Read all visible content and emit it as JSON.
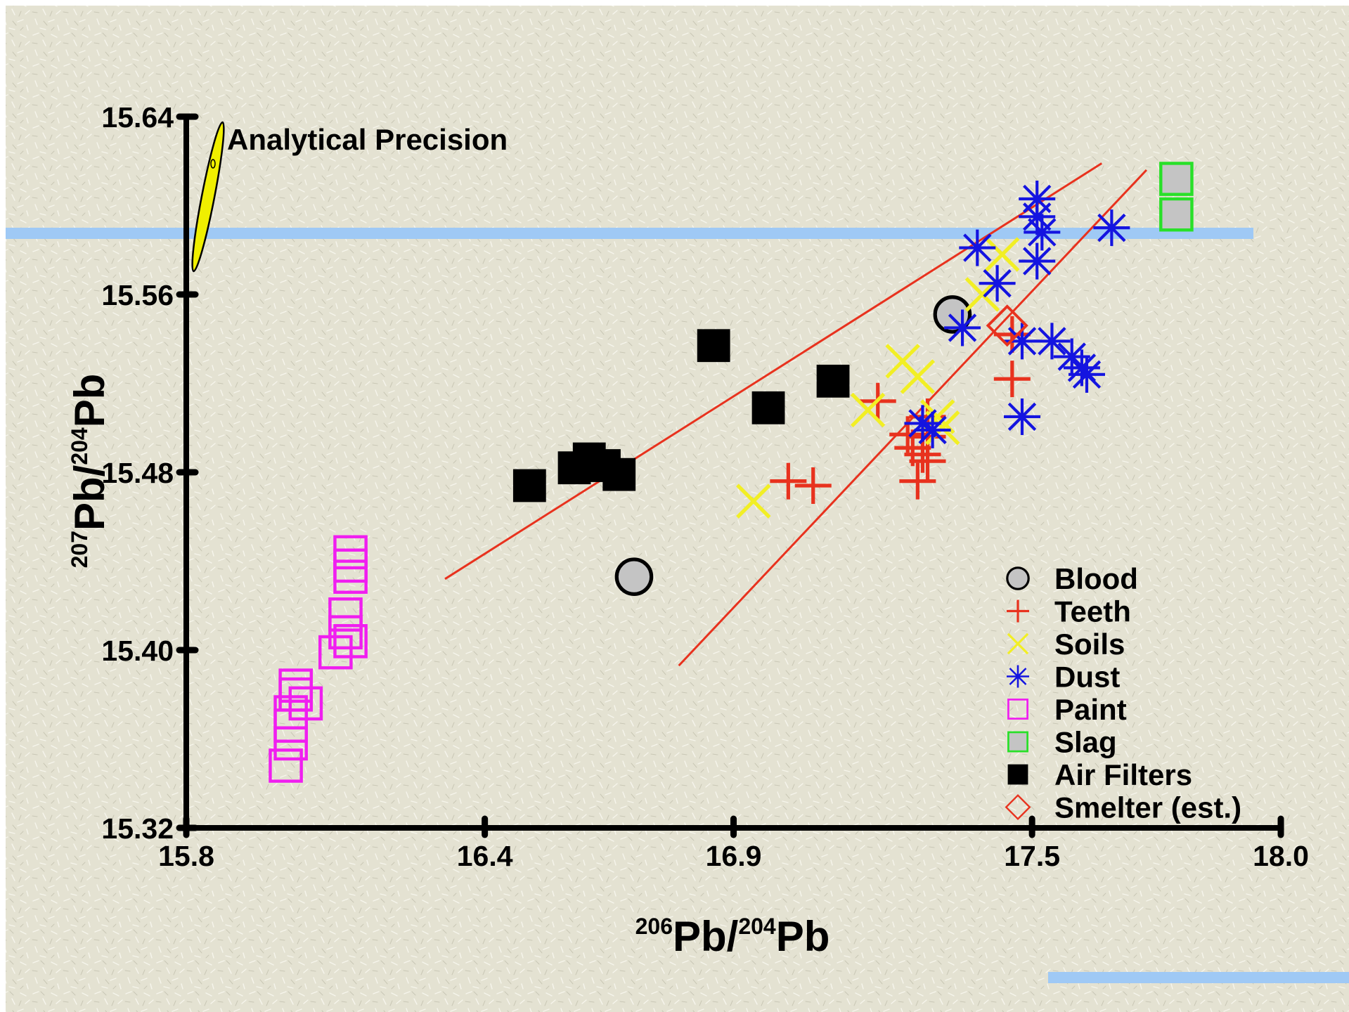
{
  "chart_data": {
    "type": "scatter",
    "title": "",
    "xlabel": {
      "pre_sup": "206",
      "mid": "Pb/",
      "mid_sup": "204",
      "post": "Pb"
    },
    "ylabel": {
      "pre_sup": "207",
      "mid": "Pb/",
      "mid_sup": "204",
      "post": "Pb"
    },
    "xlim": [
      15.8,
      18.0
    ],
    "ylim": [
      15.32,
      15.64
    ],
    "xticks": [
      "15.8",
      "16.4",
      "16.9",
      "17.5",
      "18.0"
    ],
    "yticks": [
      "15.32",
      "15.40",
      "15.48",
      "15.56",
      "15.64"
    ],
    "annotation": "Analytical Precision",
    "colors": {
      "background": "#e4e2d2",
      "highlight_bar": "#9fc9f5",
      "axis": "#000000",
      "trend_line": "#e8321e"
    },
    "legend_position": "bottom-right",
    "series": [
      {
        "name": "Blood",
        "marker": "circle",
        "color": "#000000",
        "fill": "#c4c4c4",
        "points": [
          [
            16.7,
            15.433
          ],
          [
            17.34,
            15.551
          ]
        ]
      },
      {
        "name": "Teeth",
        "marker": "plus",
        "color": "#e8321e",
        "points": [
          [
            17.01,
            15.476
          ],
          [
            17.06,
            15.474
          ],
          [
            17.19,
            15.512
          ],
          [
            17.25,
            15.497
          ],
          [
            17.26,
            15.491
          ],
          [
            17.28,
            15.488
          ],
          [
            17.29,
            15.485
          ],
          [
            17.27,
            15.476
          ],
          [
            17.29,
            15.496
          ],
          [
            17.29,
            15.505
          ],
          [
            17.46,
            15.542
          ],
          [
            17.46,
            15.522
          ]
        ]
      },
      {
        "name": "Soils",
        "marker": "x",
        "color": "#f2ef24",
        "points": [
          [
            16.94,
            15.467
          ],
          [
            17.17,
            15.508
          ],
          [
            17.24,
            15.53
          ],
          [
            17.27,
            15.523
          ],
          [
            17.31,
            15.505
          ],
          [
            17.32,
            15.5
          ],
          [
            17.4,
            15.56
          ],
          [
            17.44,
            15.578
          ]
        ]
      },
      {
        "name": "Dust",
        "marker": "asterisk",
        "color": "#1414e0",
        "points": [
          [
            17.28,
            15.502
          ],
          [
            17.3,
            15.499
          ],
          [
            17.36,
            15.545
          ],
          [
            17.39,
            15.581
          ],
          [
            17.43,
            15.565
          ],
          [
            17.48,
            15.505
          ],
          [
            17.48,
            15.539
          ],
          [
            17.51,
            15.603
          ],
          [
            17.51,
            15.595
          ],
          [
            17.52,
            15.588
          ],
          [
            17.51,
            15.575
          ],
          [
            17.54,
            15.539
          ],
          [
            17.58,
            15.532
          ],
          [
            17.6,
            15.527
          ],
          [
            17.61,
            15.524
          ],
          [
            17.66,
            15.59
          ]
        ]
      },
      {
        "name": "Paint",
        "marker": "square-open",
        "color": "#f01ef0",
        "points": [
          [
            16.0,
            15.348
          ],
          [
            16.01,
            15.358
          ],
          [
            16.01,
            15.366
          ],
          [
            16.01,
            15.372
          ],
          [
            16.02,
            15.38
          ],
          [
            16.02,
            15.384
          ],
          [
            16.04,
            15.376
          ],
          [
            16.1,
            15.399
          ],
          [
            16.12,
            15.416
          ],
          [
            16.12,
            15.408
          ],
          [
            16.13,
            15.404
          ],
          [
            16.13,
            15.433
          ],
          [
            16.13,
            15.438
          ],
          [
            16.13,
            15.444
          ]
        ]
      },
      {
        "name": "Slag",
        "marker": "square-gray",
        "color": "#28e028",
        "fill": "#c4c4c4",
        "points": [
          [
            17.79,
            15.612
          ],
          [
            17.79,
            15.596
          ]
        ]
      },
      {
        "name": "Air Filters",
        "marker": "square-filled",
        "color": "#000000",
        "points": [
          [
            16.49,
            15.474
          ],
          [
            16.58,
            15.482
          ],
          [
            16.61,
            15.486
          ],
          [
            16.64,
            15.483
          ],
          [
            16.67,
            15.479
          ],
          [
            16.86,
            15.537
          ],
          [
            16.97,
            15.509
          ],
          [
            17.1,
            15.521
          ]
        ]
      },
      {
        "name": "Smelter (est.)",
        "marker": "diamond-open",
        "color": "#e8321e",
        "points": [
          [
            17.45,
            15.546
          ]
        ]
      }
    ],
    "lines": [
      {
        "color": "#e8321e",
        "points": [
          [
            16.32,
            15.432
          ],
          [
            17.64,
            15.619
          ]
        ]
      },
      {
        "color": "#e8321e",
        "points": [
          [
            16.79,
            15.393
          ],
          [
            17.73,
            15.616
          ]
        ]
      }
    ]
  }
}
